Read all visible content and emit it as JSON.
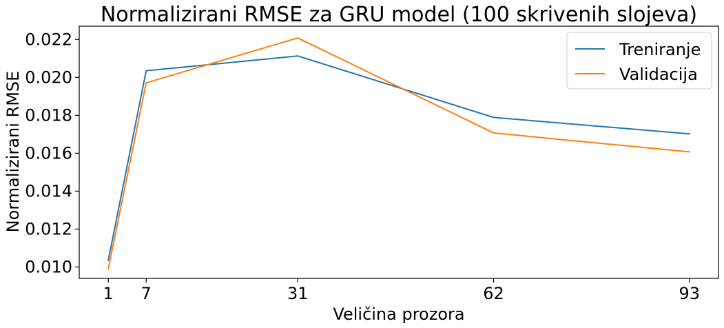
{
  "chart_data": {
    "type": "line",
    "title": "Normalizirani RMSE za GRU model (100 skrivenih slojeva)",
    "xlabel": "Veličina prozora",
    "ylabel": "Normalizirani RMSE",
    "x": [
      1,
      7,
      31,
      62,
      93
    ],
    "x_ticks": [
      1,
      7,
      31,
      62,
      93
    ],
    "x_tick_labels": [
      "1",
      "7",
      "31",
      "62",
      "93"
    ],
    "xlim": [
      -3.6,
      97.6
    ],
    "ylim": [
      0.0094,
      0.0227
    ],
    "y_ticks": [
      0.01,
      0.012,
      0.014,
      0.016,
      0.018,
      0.02,
      0.022
    ],
    "y_tick_labels": [
      "0.010",
      "0.012",
      "0.014",
      "0.016",
      "0.018",
      "0.020",
      "0.022"
    ],
    "grid": false,
    "legend_position": "top-right",
    "series": [
      {
        "name": "Treniranje",
        "color": "#1f77b4",
        "values": [
          0.01035,
          0.02035,
          0.02113,
          0.01789,
          0.01702
        ]
      },
      {
        "name": "Validacija",
        "color": "#ff7f0e",
        "values": [
          0.0099,
          0.01971,
          0.02208,
          0.01707,
          0.01607
        ]
      }
    ]
  }
}
